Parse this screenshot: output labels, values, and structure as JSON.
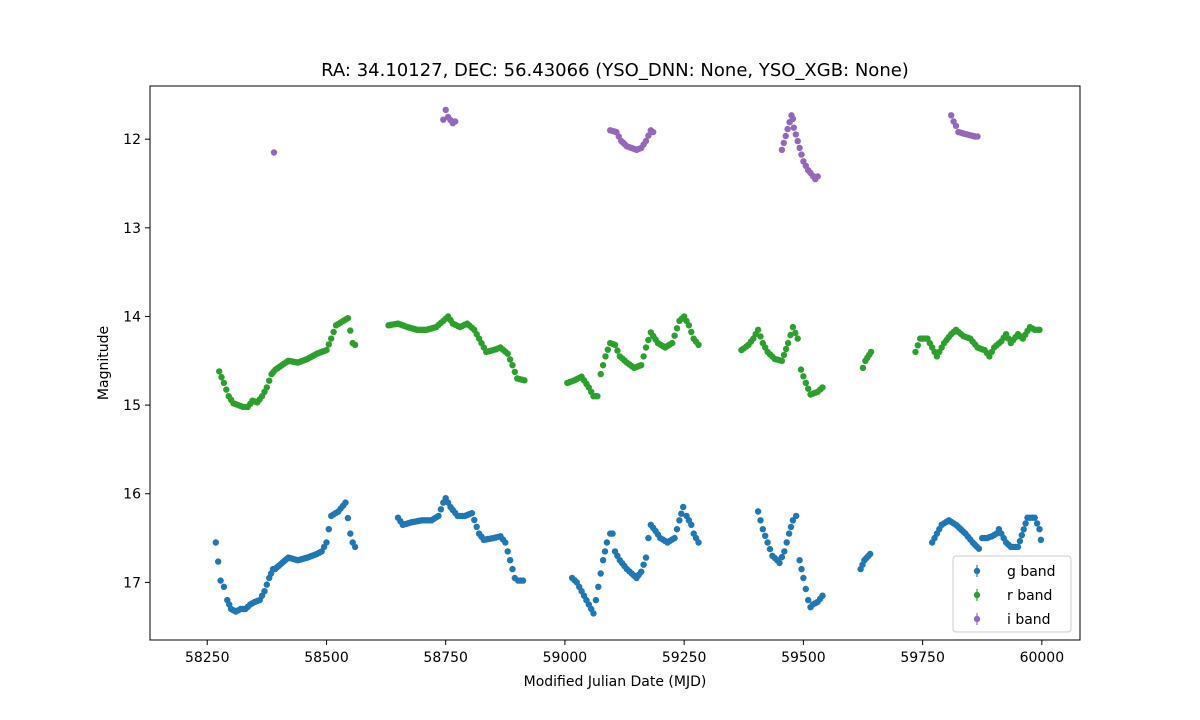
{
  "chart_data": {
    "type": "scatter",
    "title": "RA: 34.10127, DEC: 56.43066 (YSO_DNN: None, YSO_XGB: None)",
    "xlabel": "Modified Julian Date (MJD)",
    "ylabel": "Magnitude",
    "xlim": [
      58130,
      60080
    ],
    "ylim": [
      17.65,
      11.4
    ],
    "y_inverted": true,
    "xticks": [
      58250,
      58500,
      58750,
      59000,
      59250,
      59500,
      59750,
      60000
    ],
    "xtick_labels": [
      "58250",
      "58500",
      "58750",
      "59000",
      "59250",
      "59500",
      "59750",
      "60000"
    ],
    "yticks": [
      12,
      13,
      14,
      15,
      16,
      17
    ],
    "ytick_labels": [
      "12",
      "13",
      "14",
      "15",
      "16",
      "17"
    ],
    "grid": false,
    "legend_position": "lower-right",
    "series": [
      {
        "name": "g band",
        "color": "#1f77b4",
        "anchors": [
          [
            58268,
            16.55
          ],
          [
            58278,
            16.98
          ],
          [
            58285,
            17.05
          ],
          [
            58292,
            17.2
          ],
          [
            58300,
            17.3
          ],
          [
            58310,
            17.33
          ],
          [
            58320,
            17.3
          ],
          [
            58330,
            17.3
          ],
          [
            58340,
            17.25
          ],
          [
            58350,
            17.22
          ],
          [
            58360,
            17.2
          ],
          [
            58370,
            17.1
          ],
          [
            58380,
            16.95
          ],
          [
            58388,
            16.85
          ],
          [
            58392,
            16.85
          ],
          [
            58420,
            16.72
          ],
          [
            58440,
            16.75
          ],
          [
            58460,
            16.72
          ],
          [
            58480,
            16.68
          ],
          [
            58490,
            16.65
          ],
          [
            58500,
            16.55
          ],
          [
            58505,
            16.4
          ],
          [
            58510,
            16.25
          ],
          [
            58525,
            16.2
          ],
          [
            58540,
            16.1
          ],
          [
            58550,
            16.45
          ],
          [
            58555,
            16.55
          ],
          [
            58560,
            16.6
          ],
          [
            58650,
            16.27
          ],
          [
            58660,
            16.35
          ],
          [
            58680,
            16.32
          ],
          [
            58700,
            16.3
          ],
          [
            58720,
            16.3
          ],
          [
            58735,
            16.25
          ],
          [
            58745,
            16.1
          ],
          [
            58750,
            16.05
          ],
          [
            58760,
            16.15
          ],
          [
            58775,
            16.25
          ],
          [
            58790,
            16.25
          ],
          [
            58805,
            16.22
          ],
          [
            58820,
            16.45
          ],
          [
            58830,
            16.52
          ],
          [
            58850,
            16.5
          ],
          [
            58865,
            16.48
          ],
          [
            58875,
            16.55
          ],
          [
            58885,
            16.75
          ],
          [
            58895,
            16.95
          ],
          [
            58902,
            16.98
          ],
          [
            58912,
            16.98
          ],
          [
            59015,
            16.95
          ],
          [
            59025,
            17.0
          ],
          [
            59035,
            17.1
          ],
          [
            59045,
            17.2
          ],
          [
            59055,
            17.3
          ],
          [
            59060,
            17.35
          ],
          [
            59065,
            17.2
          ],
          [
            59070,
            17.05
          ],
          [
            59075,
            16.9
          ],
          [
            59080,
            16.75
          ],
          [
            59088,
            16.55
          ],
          [
            59095,
            16.45
          ],
          [
            59100,
            16.45
          ],
          [
            59105,
            16.65
          ],
          [
            59115,
            16.75
          ],
          [
            59130,
            16.85
          ],
          [
            59140,
            16.9
          ],
          [
            59150,
            16.95
          ],
          [
            59160,
            16.88
          ],
          [
            59170,
            16.72
          ],
          [
            59175,
            16.5
          ],
          [
            59180,
            16.35
          ],
          [
            59190,
            16.42
          ],
          [
            59200,
            16.5
          ],
          [
            59215,
            16.55
          ],
          [
            59230,
            16.5
          ],
          [
            59240,
            16.3
          ],
          [
            59248,
            16.15
          ],
          [
            59255,
            16.25
          ],
          [
            59265,
            16.35
          ],
          [
            59270,
            16.45
          ],
          [
            59280,
            16.55
          ],
          [
            59405,
            16.2
          ],
          [
            59415,
            16.4
          ],
          [
            59425,
            16.55
          ],
          [
            59435,
            16.7
          ],
          [
            59445,
            16.75
          ],
          [
            59450,
            16.78
          ],
          [
            59460,
            16.65
          ],
          [
            59470,
            16.45
          ],
          [
            59478,
            16.3
          ],
          [
            59485,
            16.25
          ],
          [
            59492,
            16.75
          ],
          [
            59500,
            16.95
          ],
          [
            59510,
            17.2
          ],
          [
            59515,
            17.28
          ],
          [
            59520,
            17.25
          ],
          [
            59530,
            17.22
          ],
          [
            59540,
            17.15
          ],
          [
            59620,
            16.85
          ],
          [
            59628,
            16.75
          ],
          [
            59640,
            16.68
          ],
          [
            59770,
            16.55
          ],
          [
            59780,
            16.45
          ],
          [
            59790,
            16.35
          ],
          [
            59805,
            16.3
          ],
          [
            59820,
            16.35
          ],
          [
            59840,
            16.45
          ],
          [
            59855,
            16.55
          ],
          [
            59868,
            16.62
          ],
          [
            59875,
            16.5
          ],
          [
            59885,
            16.5
          ],
          [
            59895,
            16.48
          ],
          [
            59905,
            16.45
          ],
          [
            59910,
            16.4
          ],
          [
            59925,
            16.55
          ],
          [
            59935,
            16.6
          ],
          [
            59950,
            16.6
          ],
          [
            59970,
            16.27
          ],
          [
            59985,
            16.27
          ],
          [
            59995,
            16.4
          ],
          [
            59998,
            16.52
          ]
        ]
      },
      {
        "name": "r band",
        "color": "#2ca02c",
        "anchors": [
          [
            58275,
            14.62
          ],
          [
            58285,
            14.75
          ],
          [
            58295,
            14.9
          ],
          [
            58305,
            14.98
          ],
          [
            58315,
            15.0
          ],
          [
            58325,
            15.02
          ],
          [
            58335,
            15.02
          ],
          [
            58345,
            14.95
          ],
          [
            58355,
            14.97
          ],
          [
            58365,
            14.9
          ],
          [
            58375,
            14.8
          ],
          [
            58385,
            14.65
          ],
          [
            58393,
            14.6
          ],
          [
            58420,
            14.5
          ],
          [
            58440,
            14.52
          ],
          [
            58460,
            14.48
          ],
          [
            58480,
            14.42
          ],
          [
            58500,
            14.38
          ],
          [
            58510,
            14.25
          ],
          [
            58520,
            14.1
          ],
          [
            58535,
            14.05
          ],
          [
            58545,
            14.02
          ],
          [
            58555,
            14.3
          ],
          [
            58560,
            14.32
          ],
          [
            58630,
            14.1
          ],
          [
            58650,
            14.08
          ],
          [
            58670,
            14.12
          ],
          [
            58690,
            14.15
          ],
          [
            58710,
            14.15
          ],
          [
            58730,
            14.12
          ],
          [
            58745,
            14.05
          ],
          [
            58755,
            14.0
          ],
          [
            58765,
            14.08
          ],
          [
            58780,
            14.12
          ],
          [
            58795,
            14.08
          ],
          [
            58810,
            14.15
          ],
          [
            58820,
            14.25
          ],
          [
            58835,
            14.4
          ],
          [
            58850,
            14.38
          ],
          [
            58865,
            14.35
          ],
          [
            58880,
            14.42
          ],
          [
            58890,
            14.55
          ],
          [
            58900,
            14.7
          ],
          [
            58915,
            14.72
          ],
          [
            59005,
            14.75
          ],
          [
            59020,
            14.72
          ],
          [
            59035,
            14.68
          ],
          [
            59050,
            14.8
          ],
          [
            59060,
            14.9
          ],
          [
            59068,
            14.9
          ],
          [
            59075,
            14.65
          ],
          [
            59085,
            14.45
          ],
          [
            59095,
            14.3
          ],
          [
            59105,
            14.32
          ],
          [
            59115,
            14.45
          ],
          [
            59130,
            14.52
          ],
          [
            59145,
            14.58
          ],
          [
            59160,
            14.55
          ],
          [
            59170,
            14.35
          ],
          [
            59180,
            14.18
          ],
          [
            59195,
            14.3
          ],
          [
            59210,
            14.35
          ],
          [
            59225,
            14.3
          ],
          [
            59240,
            14.05
          ],
          [
            59250,
            14.0
          ],
          [
            59260,
            14.1
          ],
          [
            59270,
            14.25
          ],
          [
            59280,
            14.32
          ],
          [
            59370,
            14.38
          ],
          [
            59385,
            14.32
          ],
          [
            59395,
            14.25
          ],
          [
            59405,
            14.15
          ],
          [
            59415,
            14.3
          ],
          [
            59425,
            14.4
          ],
          [
            59440,
            14.48
          ],
          [
            59455,
            14.5
          ],
          [
            59468,
            14.3
          ],
          [
            59478,
            14.12
          ],
          [
            59488,
            14.25
          ],
          [
            59495,
            14.6
          ],
          [
            59505,
            14.75
          ],
          [
            59515,
            14.88
          ],
          [
            59530,
            14.85
          ],
          [
            59540,
            14.8
          ],
          [
            59625,
            14.58
          ],
          [
            59630,
            14.5
          ],
          [
            59642,
            14.4
          ],
          [
            59735,
            14.4
          ],
          [
            59745,
            14.25
          ],
          [
            59760,
            14.25
          ],
          [
            59770,
            14.35
          ],
          [
            59780,
            14.45
          ],
          [
            59795,
            14.3
          ],
          [
            59810,
            14.2
          ],
          [
            59820,
            14.15
          ],
          [
            59835,
            14.22
          ],
          [
            59850,
            14.25
          ],
          [
            59865,
            14.35
          ],
          [
            59880,
            14.38
          ],
          [
            59890,
            14.45
          ],
          [
            59900,
            14.35
          ],
          [
            59915,
            14.28
          ],
          [
            59925,
            14.2
          ],
          [
            59935,
            14.3
          ],
          [
            59950,
            14.2
          ],
          [
            59960,
            14.25
          ],
          [
            59975,
            14.12
          ],
          [
            59985,
            14.15
          ],
          [
            59995,
            14.15
          ]
        ]
      },
      {
        "name": "i band",
        "color": "#9467bd",
        "anchors": [
          [
            58390,
            12.15
          ],
          [
            58745,
            11.78
          ],
          [
            58750,
            11.67
          ],
          [
            58755,
            11.75
          ],
          [
            58765,
            11.82
          ],
          [
            58770,
            11.8
          ],
          [
            59095,
            11.9
          ],
          [
            59108,
            11.92
          ],
          [
            59118,
            12.02
          ],
          [
            59130,
            12.08
          ],
          [
            59140,
            12.1
          ],
          [
            59150,
            12.12
          ],
          [
            59160,
            12.1
          ],
          [
            59170,
            12.02
          ],
          [
            59180,
            11.9
          ],
          [
            59185,
            11.92
          ],
          [
            59455,
            12.12
          ],
          [
            59475,
            11.73
          ],
          [
            59478,
            11.77
          ],
          [
            59480,
            11.87
          ],
          [
            59500,
            12.25
          ],
          [
            59505,
            12.3
          ],
          [
            59510,
            12.35
          ],
          [
            59515,
            12.38
          ],
          [
            59525,
            12.45
          ],
          [
            59530,
            12.42
          ],
          [
            59810,
            11.73
          ],
          [
            59815,
            11.8
          ],
          [
            59820,
            11.85
          ],
          [
            59825,
            11.92
          ],
          [
            59860,
            11.97
          ],
          [
            59865,
            11.97
          ]
        ]
      }
    ]
  }
}
